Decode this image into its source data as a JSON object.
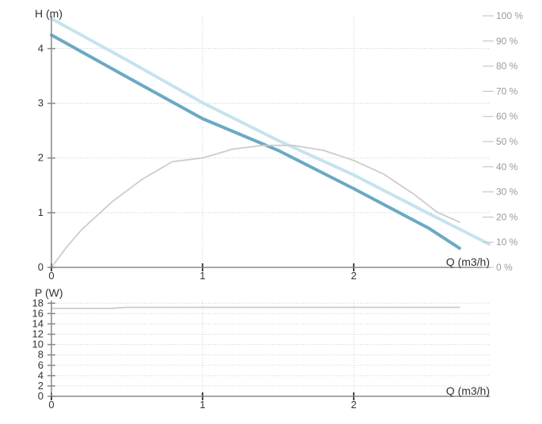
{
  "chart_data": [
    {
      "type": "line",
      "ylabel": "H (m)",
      "xlabel": "Q (m3/h)",
      "xlim": [
        0,
        2.9
      ],
      "ylim": [
        0,
        4.6
      ],
      "x_ticks": [
        "0",
        "1",
        "2"
      ],
      "x_tick_values": [
        0,
        1,
        2
      ],
      "y_ticks": [
        "0",
        "1",
        "2",
        "3",
        "4"
      ],
      "y_tick_values": [
        0,
        1,
        2,
        3,
        4
      ],
      "y2_ticks": [
        "0 %",
        "10 %",
        "20 %",
        "30 %",
        "40 %",
        "50 %",
        "60 %",
        "70 %",
        "80 %",
        "90 %",
        "100 %"
      ],
      "y2_tick_values": [
        0,
        10,
        20,
        30,
        40,
        50,
        60,
        70,
        80,
        90,
        100
      ],
      "y2lim": [
        0,
        100
      ],
      "grid": true,
      "series": [
        {
          "axis": "left",
          "color": "#6aa9c4",
          "style": "solid",
          "x": [
            0,
            0.5,
            1,
            1.5,
            2,
            2.5,
            2.7
          ],
          "y": [
            4.25,
            3.48,
            2.72,
            2.14,
            1.44,
            0.71,
            0.35
          ]
        },
        {
          "axis": "left",
          "color": "#c5e3ee",
          "style": "dotted",
          "x": [
            0,
            0.5,
            1,
            1.5,
            2,
            2.5,
            2.9
          ],
          "y": [
            4.55,
            3.79,
            3.01,
            2.32,
            1.69,
            0.98,
            0.42
          ]
        },
        {
          "axis": "right",
          "color": "#cccccc",
          "style": "solid",
          "x": [
            0,
            0.1,
            0.2,
            0.4,
            0.6,
            0.8,
            1.0,
            1.2,
            1.4,
            1.6,
            1.8,
            2.0,
            2.2,
            2.4,
            2.55,
            2.7
          ],
          "y": [
            0,
            8,
            15,
            26,
            35,
            42,
            43.5,
            47,
            48.5,
            48.5,
            46.5,
            42.5,
            37,
            29,
            22,
            18
          ]
        }
      ]
    },
    {
      "type": "line",
      "ylabel": "P (W)",
      "xlabel": "Q (m3/h)",
      "xlim": [
        0,
        2.9
      ],
      "ylim": [
        0,
        18.5
      ],
      "x_ticks": [
        "0",
        "1",
        "2"
      ],
      "x_tick_values": [
        0,
        1,
        2
      ],
      "y_ticks": [
        "0",
        "2",
        "4",
        "6",
        "8",
        "10",
        "12",
        "14",
        "16",
        "18"
      ],
      "y_tick_values": [
        0,
        2,
        4,
        6,
        8,
        10,
        12,
        14,
        16,
        18
      ],
      "grid": true,
      "series": [
        {
          "color": "#cccccc",
          "style": "solid",
          "x": [
            0,
            0.4,
            0.5,
            2.7
          ],
          "y": [
            17.0,
            17.0,
            17.2,
            17.2
          ]
        }
      ]
    }
  ]
}
